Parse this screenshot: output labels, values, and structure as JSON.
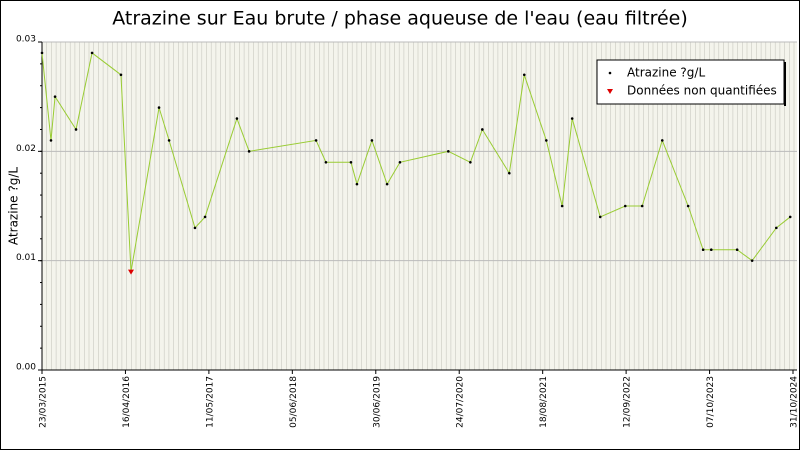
{
  "chart_data": {
    "type": "line",
    "title": "Atrazine sur Eau brute / phase aqueuse de l'eau (eau filtrée)",
    "y_label": "Atrazine ?g/L",
    "x": [
      "23/03/2015",
      "04/05/2015",
      "23/05/2015",
      "29/08/2015",
      "12/11/2015",
      "26/03/2016",
      "12/05/2016",
      "20/09/2016",
      "06/11/2016",
      "07/03/2017",
      "23/04/2017",
      "19/09/2017",
      "15/11/2017",
      "24/09/2018",
      "09/11/2018",
      "06/03/2019",
      "03/04/2019",
      "12/06/2019",
      "22/08/2019",
      "21/10/2019",
      "03/06/2020",
      "14/09/2020",
      "09/11/2020",
      "15/03/2021",
      "24/05/2021",
      "04/09/2021",
      "17/11/2021",
      "03/01/2022",
      "14/05/2022",
      "08/09/2022",
      "26/11/2022",
      "28/02/2023",
      "29/06/2023",
      "07/09/2023",
      "15/10/2023",
      "13/02/2024",
      "23/04/2024",
      "14/08/2024",
      "18/10/2024"
    ],
    "series": [
      {
        "name": "Atrazine ?g/L",
        "color": "#99cc33",
        "marker_color": "#000000",
        "values": [
          0.029,
          0.021,
          0.025,
          0.022,
          0.029,
          0.027,
          0.009,
          0.024,
          0.021,
          0.013,
          0.014,
          0.023,
          0.02,
          0.021,
          0.019,
          0.019,
          0.017,
          0.021,
          0.017,
          0.019,
          0.02,
          0.019,
          0.022,
          0.018,
          0.027,
          0.021,
          0.015,
          0.023,
          0.014,
          0.015,
          0.015,
          0.021,
          0.015,
          0.011,
          0.011,
          0.011,
          0.01,
          0.013,
          0.014
        ]
      },
      {
        "name": "Données non quantifiées",
        "color": "#dd0000",
        "x": [
          "12/05/2016"
        ],
        "values": [
          0.009
        ]
      }
    ],
    "xlim": [
      "23/03/2015",
      "31/10/2024"
    ],
    "xticks": [
      "23/03/2015",
      "16/04/2016",
      "11/05/2017",
      "05/06/2018",
      "30/06/2019",
      "24/07/2020",
      "18/08/2021",
      "12/09/2022",
      "07/10/2023",
      "31/10/2024"
    ],
    "ylim": [
      0,
      0.03
    ],
    "yticks": [
      {
        "value": 0,
        "label": "0.00"
      },
      0.01,
      0.02,
      0.03
    ],
    "grid": true,
    "legend": "top-right"
  }
}
